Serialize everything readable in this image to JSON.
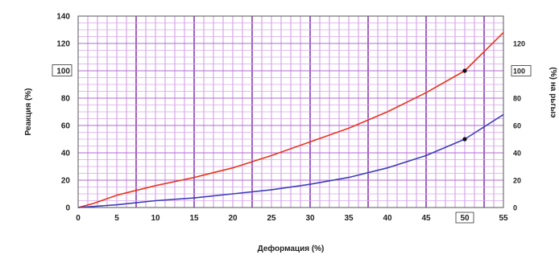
{
  "chart_data": {
    "type": "line",
    "xlabel": "Деформация (%)",
    "ylabel": "Реакция (%)",
    "y2label": "(%) на рьгыэ",
    "xlim": [
      0,
      55
    ],
    "ylim": [
      0,
      140
    ],
    "y2lim": [
      0,
      140
    ],
    "grid": true,
    "xticks": [
      0,
      5,
      10,
      15,
      20,
      25,
      30,
      35,
      40,
      45,
      50,
      55
    ],
    "yticks": [
      0,
      20,
      40,
      60,
      80,
      100,
      120,
      140
    ],
    "y2ticks": [
      0,
      20,
      40,
      60,
      80,
      100,
      120
    ],
    "highlighted": {
      "x_tick": "50",
      "y_tick": "100",
      "y2_tick": "100"
    },
    "series": [
      {
        "color": "#e8341c",
        "x": [
          0,
          2,
          5,
          10,
          15,
          20,
          25,
          30,
          35,
          40,
          45,
          50,
          55
        ],
        "y": [
          0,
          3,
          9,
          16,
          22,
          29,
          38,
          48,
          58,
          70,
          84,
          100,
          128
        ],
        "markers": [
          [
            50,
            100
          ]
        ]
      },
      {
        "color": "#3d3db8",
        "x": [
          0,
          5,
          10,
          15,
          20,
          25,
          30,
          35,
          40,
          45,
          50,
          55
        ],
        "y": [
          0,
          2,
          5,
          7,
          10,
          13,
          17,
          22,
          29,
          38,
          50,
          68
        ],
        "markers": [
          [
            50,
            50
          ]
        ]
      }
    ]
  }
}
